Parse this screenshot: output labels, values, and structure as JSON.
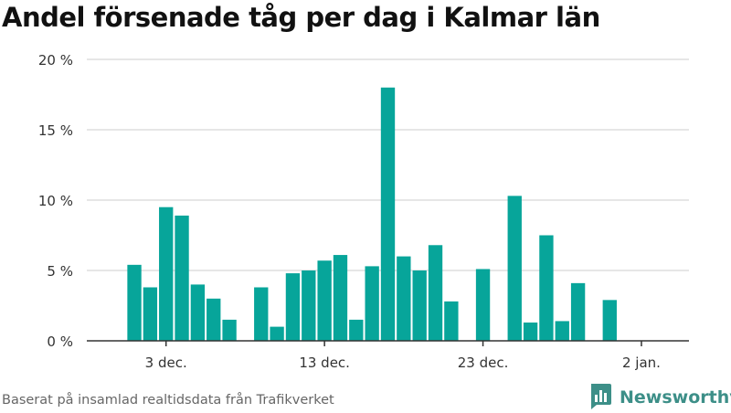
{
  "chart_data": {
    "type": "bar",
    "title": "Andel försenade tåg per dag i Kalmar län",
    "xlabel": "",
    "ylabel": "",
    "x": [
      "2022-12-01",
      "2022-12-02",
      "2022-12-03",
      "2022-12-04",
      "2022-12-05",
      "2022-12-06",
      "2022-12-07",
      "2022-12-08",
      "2022-12-09",
      "2022-12-10",
      "2022-12-11",
      "2022-12-12",
      "2022-12-13",
      "2022-12-14",
      "2022-12-15",
      "2022-12-16",
      "2022-12-17",
      "2022-12-18",
      "2022-12-19",
      "2022-12-20",
      "2022-12-21",
      "2022-12-22",
      "2022-12-23",
      "2022-12-24",
      "2022-12-25",
      "2022-12-26",
      "2022-12-27",
      "2022-12-28",
      "2022-12-29",
      "2022-12-30",
      "2022-12-31",
      "2023-01-01"
    ],
    "values": [
      5.4,
      3.8,
      9.5,
      8.9,
      4.0,
      3.0,
      1.5,
      null,
      3.8,
      1.0,
      4.8,
      5.0,
      5.7,
      6.1,
      1.5,
      5.3,
      18.0,
      6.0,
      5.0,
      6.8,
      2.8,
      null,
      5.1,
      null,
      10.3,
      1.3,
      7.5,
      1.4,
      4.1,
      null,
      2.9,
      null
    ],
    "xticks": [
      {
        "date": "2022-12-03",
        "label": "3 dec."
      },
      {
        "date": "2022-12-13",
        "label": "13 dec."
      },
      {
        "date": "2022-12-23",
        "label": "23 dec."
      },
      {
        "date": "2023-01-02",
        "label": "2 jan."
      }
    ],
    "yticks": [
      {
        "value": 0,
        "label": "0 %"
      },
      {
        "value": 5,
        "label": "5 %"
      },
      {
        "value": 10,
        "label": "10 %"
      },
      {
        "value": 15,
        "label": "15 %"
      },
      {
        "value": 20,
        "label": "20 %"
      }
    ],
    "ylim": [
      0,
      20
    ],
    "xlim": [
      "2022-11-28",
      "2023-01-05"
    ],
    "grid": "horizontal",
    "legend": "none",
    "bar_color": "#07a59a",
    "grid_color": "#dddddd",
    "axis_color": "#333333"
  },
  "footer": {
    "source": "Baserat på insamlad realtidsdata från Trafikverket",
    "brand": "Newsworthy",
    "brand_icon": "bar-chart-logo-icon",
    "brand_color": "#3d8f88"
  }
}
